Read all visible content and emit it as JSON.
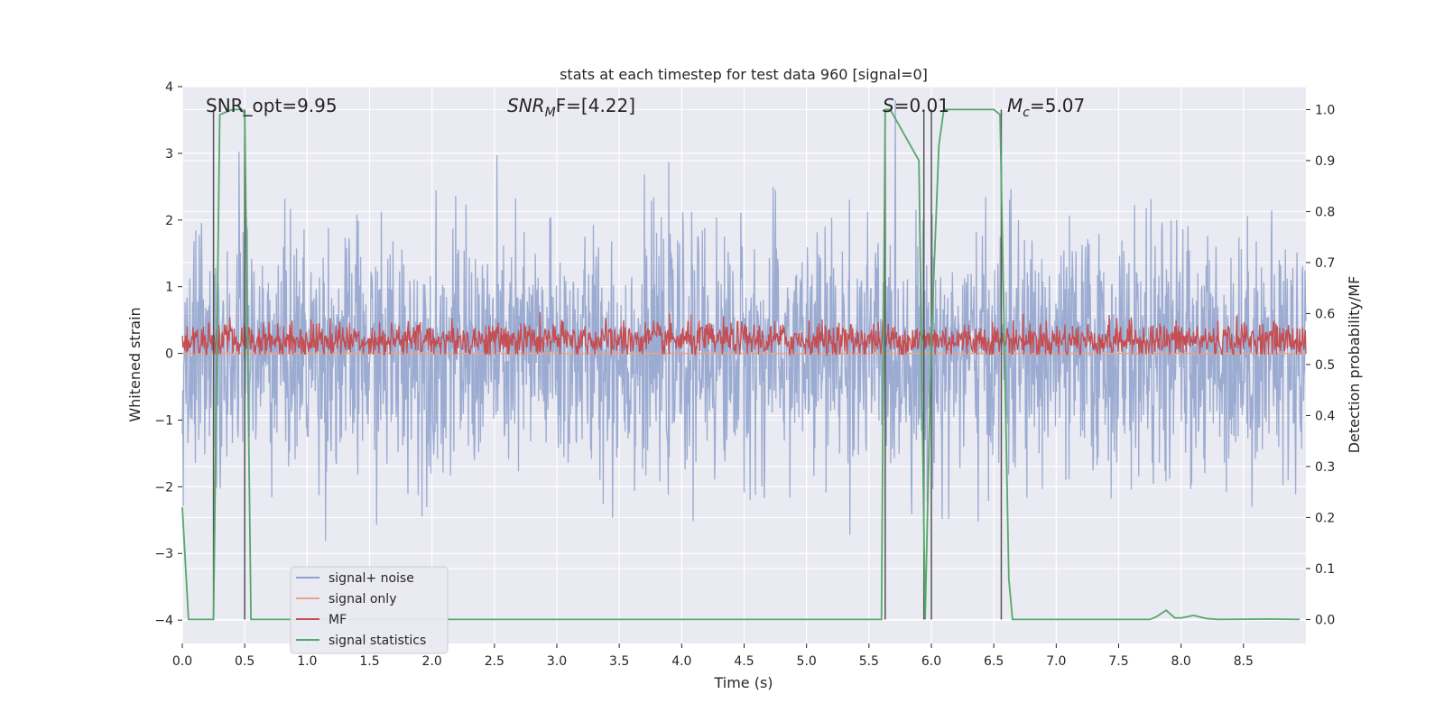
{
  "chart_data": {
    "type": "line",
    "title": "stats at each timestep for test data 960 [signal=0]",
    "xlabel": "Time (s)",
    "ylabel_left": "Whitened strain",
    "ylabel_right": "Detection probability/MF",
    "xlim": [
      0,
      9.0
    ],
    "ylim_left": [
      -4.35,
      4.0
    ],
    "ylim_right": [
      -0.047,
      1.045
    ],
    "x_ticks": [
      "0.0",
      "0.5",
      "1.0",
      "1.5",
      "2.0",
      "2.5",
      "3.0",
      "3.5",
      "4.0",
      "4.5",
      "5.0",
      "5.5",
      "6.0",
      "6.5",
      "7.0",
      "7.5",
      "8.0",
      "8.5"
    ],
    "y_ticks_left": [
      "−4",
      "−3",
      "−2",
      "−1",
      "0",
      "1",
      "2",
      "3",
      "4"
    ],
    "y_ticks_right": [
      "0.0",
      "0.1",
      "0.2",
      "0.3",
      "0.4",
      "0.5",
      "0.6",
      "0.7",
      "0.8",
      "0.9",
      "1.0"
    ],
    "grid": true,
    "legend_position": "lower-left",
    "annotations": {
      "snr_opt": "SNR_opt=9.95",
      "snr_mf_main": "SNR",
      "snr_mf_sub": "M",
      "snr_mf_tail": "F=[4.22]",
      "s_main": "S",
      "s_tail": "=0.01",
      "mc_main": "M",
      "mc_sub": "c",
      "mc_tail": "=5.07"
    },
    "colors": {
      "signal_noise": "#8da0cb",
      "signal_only": "#e8a58a",
      "mf": "#c44e52",
      "signal_statistics": "#55a868",
      "vlines": "#555555",
      "background": "#eaeaf2",
      "grid": "#ffffff"
    },
    "series": [
      {
        "name": "signal+ noise",
        "axis": "left",
        "description_of_values": "noise",
        "std": 0.9,
        "x_range": [
          0,
          9.0
        ]
      },
      {
        "name": "signal only",
        "axis": "left",
        "values_constant": 0.0
      },
      {
        "name": "MF",
        "axis": "right",
        "mean": 0.548,
        "range": [
          0.52,
          0.63
        ]
      },
      {
        "name": "signal statistics",
        "axis": "right",
        "x": [
          0.0,
          0.05,
          0.25,
          0.3,
          0.4,
          0.48,
          0.5,
          0.55,
          5.6,
          5.63,
          5.67,
          5.9,
          5.95,
          6.0,
          6.06,
          6.1,
          6.2,
          6.5,
          6.55,
          6.62,
          6.65,
          6.7,
          7.75,
          7.8,
          7.88,
          7.95,
          8.0,
          8.1,
          8.2,
          8.3,
          8.7,
          8.95
        ],
        "y": [
          0.22,
          0.0,
          0.0,
          0.99,
          1.0,
          1.0,
          0.99,
          0.0,
          0.0,
          1.0,
          1.0,
          0.9,
          0.0,
          0.55,
          0.93,
          1.0,
          1.0,
          1.0,
          0.99,
          0.08,
          0.0,
          0.0,
          0.0,
          0.005,
          0.018,
          0.003,
          0.003,
          0.008,
          0.002,
          0.0,
          0.001,
          0.0
        ]
      }
    ],
    "vlines_x": [
      0.25,
      0.5,
      5.63,
      5.94,
      6.0,
      6.56
    ]
  },
  "legend": {
    "items": [
      {
        "label": "signal+ noise",
        "color": "#8da0cb"
      },
      {
        "label": "signal only",
        "color": "#e8a58a"
      },
      {
        "label": "MF",
        "color": "#c44e52"
      },
      {
        "label": "signal statistics",
        "color": "#55a868"
      }
    ]
  }
}
